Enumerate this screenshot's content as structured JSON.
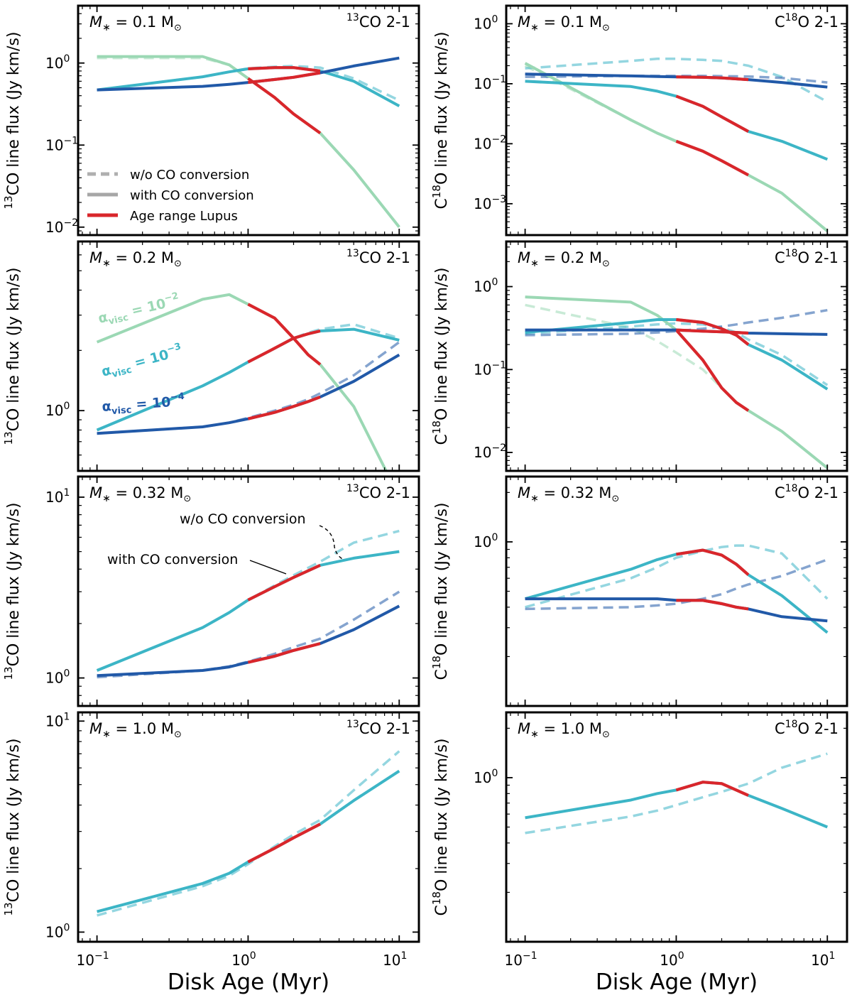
{
  "figure": {
    "xlabel": "Disk Age (Myr)",
    "ylabel_left_prefix": "13",
    "ylabel_left_suffix": "CO line flux (Jy km/s)",
    "ylabel_right_pre": "C",
    "ylabel_right_sup": "18",
    "ylabel_right_suffix": "O line flux (Jy km/s)",
    "colors": {
      "alpha_1e-2": "#9bd8b4",
      "alpha_1e-3": "#3cb5c6",
      "alpha_1e-4": "#2159a8",
      "lupus": "#d9262b",
      "legend_gray": "#a6a6a6"
    },
    "lupus_age_range": [
      1.0,
      3.0
    ]
  },
  "legend": {
    "dashed_label": "w/o CO conversion",
    "solid_label": "with CO conversion",
    "lupus_label": "Age range Lupus"
  },
  "annotations": {
    "alpha_prefix": "α",
    "alpha_sub": "visc",
    "alpha_1e-2_exp": "−2",
    "alpha_1e-3_exp": "−3",
    "alpha_1e-4_exp": "−4",
    "alpha_eq": " = 10",
    "wo_conversion": "w/o CO conversion",
    "with_conversion": "with CO conversion"
  },
  "chart_data": [
    {
      "id": "p1",
      "type": "line",
      "title": "13CO 2-1",
      "mass_label": "0.1",
      "ylim": [
        0.008,
        5.0
      ],
      "x": [
        0.1,
        0.5,
        0.75,
        1.0,
        1.5,
        2.0,
        3.0,
        5.0,
        10.0
      ],
      "series": [
        {
          "name": "alpha 1e-2 with CO conversion",
          "alpha": "1e-2",
          "style": "solid",
          "values": [
            1.2,
            1.2,
            0.95,
            0.65,
            0.38,
            0.24,
            0.14,
            0.05,
            0.01
          ]
        },
        {
          "name": "alpha 1e-2 w/o CO conversion",
          "alpha": "1e-2",
          "style": "dashed",
          "values": [
            1.15,
            1.15,
            0.95,
            0.65,
            0.38,
            0.24,
            0.14,
            0.05,
            0.01
          ]
        },
        {
          "name": "alpha 1e-3 with CO conversion",
          "alpha": "1e-3",
          "style": "solid",
          "values": [
            0.47,
            0.68,
            0.78,
            0.85,
            0.88,
            0.88,
            0.8,
            0.6,
            0.3
          ]
        },
        {
          "name": "alpha 1e-3 w/o CO conversion",
          "alpha": "1e-3",
          "style": "dashed",
          "values": [
            0.47,
            0.68,
            0.78,
            0.86,
            0.9,
            0.92,
            0.88,
            0.65,
            0.35
          ]
        },
        {
          "name": "alpha 1e-4 with CO conversion",
          "alpha": "1e-4",
          "style": "solid",
          "values": [
            0.47,
            0.52,
            0.55,
            0.58,
            0.63,
            0.67,
            0.76,
            0.92,
            1.15
          ]
        }
      ]
    },
    {
      "id": "p2",
      "type": "line",
      "title": "C18O 2-1",
      "mass_label": "0.1",
      "ylim": [
        0.0003,
        2.0
      ],
      "x": [
        0.1,
        0.5,
        0.75,
        1.0,
        1.5,
        2.0,
        3.0,
        5.0,
        10.0
      ],
      "series": [
        {
          "name": "alpha 1e-2 with CO conversion",
          "alpha": "1e-2",
          "style": "solid",
          "values": [
            0.22,
            0.025,
            0.015,
            0.011,
            0.0075,
            0.0052,
            0.003,
            0.0015,
            0.00035
          ]
        },
        {
          "name": "alpha 1e-2 w/o CO conversion",
          "alpha": "1e-2",
          "style": "dashed",
          "values": [
            0.2,
            0.025,
            0.015,
            0.011,
            0.0075,
            0.0052,
            0.003,
            0.0015,
            0.00035
          ]
        },
        {
          "name": "alpha 1e-3 with CO conversion",
          "alpha": "1e-3",
          "style": "solid",
          "values": [
            0.11,
            0.09,
            0.075,
            0.062,
            0.042,
            0.028,
            0.016,
            0.011,
            0.0055
          ]
        },
        {
          "name": "alpha 1e-3 w/o CO conversion",
          "alpha": "1e-3",
          "style": "dashed",
          "values": [
            0.18,
            0.24,
            0.26,
            0.26,
            0.25,
            0.24,
            0.2,
            0.13,
            0.05
          ]
        },
        {
          "name": "alpha 1e-4 with CO conversion",
          "alpha": "1e-4",
          "style": "solid",
          "values": [
            0.145,
            0.135,
            0.132,
            0.13,
            0.128,
            0.125,
            0.117,
            0.105,
            0.088
          ]
        },
        {
          "name": "alpha 1e-4 w/o CO conversion",
          "alpha": "1e-4",
          "style": "dashed",
          "values": [
            0.13,
            0.135,
            0.135,
            0.135,
            0.135,
            0.134,
            0.132,
            0.125,
            0.105
          ]
        }
      ]
    },
    {
      "id": "p3",
      "type": "line",
      "title": "13CO 2-1",
      "mass_label": "0.2",
      "ylim": [
        0.5,
        7.0
      ],
      "x": [
        0.1,
        0.5,
        0.75,
        1.0,
        1.5,
        2.0,
        2.5,
        3.0,
        5.0,
        10.0
      ],
      "series": [
        {
          "name": "alpha 1e-2 with CO conversion",
          "alpha": "1e-2",
          "style": "solid",
          "values": [
            2.2,
            3.6,
            3.8,
            3.4,
            2.9,
            2.3,
            1.9,
            1.7,
            1.05,
            0.37
          ]
        },
        {
          "name": "alpha 1e-3 with CO conversion",
          "alpha": "1e-3",
          "style": "solid",
          "values": [
            0.8,
            1.33,
            1.55,
            1.75,
            2.05,
            2.3,
            2.42,
            2.5,
            2.55,
            2.25
          ]
        },
        {
          "name": "alpha 1e-3 w/o CO conversion",
          "alpha": "1e-3",
          "style": "dashed",
          "values": [
            0.8,
            1.33,
            1.55,
            1.75,
            2.05,
            2.3,
            2.45,
            2.55,
            2.7,
            2.3
          ]
        },
        {
          "name": "alpha 1e-4 with CO conversion",
          "alpha": "1e-4",
          "style": "solid",
          "values": [
            0.77,
            0.83,
            0.87,
            0.91,
            0.98,
            1.05,
            1.11,
            1.17,
            1.4,
            1.9
          ]
        },
        {
          "name": "alpha 1e-4 w/o CO conversion",
          "alpha": "1e-4",
          "style": "dashed",
          "values": [
            0.77,
            0.83,
            0.87,
            0.92,
            1.0,
            1.07,
            1.14,
            1.22,
            1.5,
            2.2
          ]
        }
      ]
    },
    {
      "id": "p4",
      "type": "line",
      "title": "C18O 2-1",
      "mass_label": "0.2",
      "ylim": [
        0.006,
        3.5
      ],
      "x": [
        0.1,
        0.5,
        0.75,
        1.0,
        1.5,
        2.0,
        2.5,
        3.0,
        5.0,
        10.0
      ],
      "series": [
        {
          "name": "alpha 1e-2 with CO conversion",
          "alpha": "1e-2",
          "style": "solid",
          "values": [
            0.75,
            0.65,
            0.45,
            0.3,
            0.13,
            0.06,
            0.04,
            0.032,
            0.018,
            0.0065
          ]
        },
        {
          "name": "alpha 1e-2 w/o CO conversion",
          "alpha": "1e-2",
          "style": "dashed",
          "values": [
            0.6,
            0.32,
            0.22,
            0.16,
            0.1,
            0.06,
            0.04,
            0.032,
            0.018,
            0.0065
          ]
        },
        {
          "name": "alpha 1e-3 with CO conversion",
          "alpha": "1e-3",
          "style": "solid",
          "values": [
            0.28,
            0.37,
            0.4,
            0.4,
            0.37,
            0.31,
            0.26,
            0.2,
            0.13,
            0.058
          ]
        },
        {
          "name": "alpha 1e-3 w/o CO conversion",
          "alpha": "1e-3",
          "style": "dashed",
          "values": [
            0.27,
            0.33,
            0.35,
            0.36,
            0.35,
            0.32,
            0.28,
            0.23,
            0.15,
            0.065
          ]
        },
        {
          "name": "alpha 1e-4 with CO conversion",
          "alpha": "1e-4",
          "style": "solid",
          "values": [
            0.3,
            0.3,
            0.3,
            0.3,
            0.29,
            0.285,
            0.28,
            0.275,
            0.27,
            0.265
          ]
        },
        {
          "name": "alpha 1e-4 w/o CO conversion",
          "alpha": "1e-4",
          "style": "dashed",
          "values": [
            0.26,
            0.27,
            0.28,
            0.29,
            0.31,
            0.33,
            0.35,
            0.37,
            0.42,
            0.52
          ]
        }
      ]
    },
    {
      "id": "p5",
      "type": "line",
      "title": "13CO 2-1",
      "mass_label": "0.32",
      "ylim": [
        0.7,
        13.0
      ],
      "x": [
        0.1,
        0.5,
        0.75,
        1.0,
        1.5,
        2.0,
        3.0,
        5.0,
        10.0
      ],
      "series": [
        {
          "name": "alpha 1e-3 with CO conversion",
          "alpha": "1e-3",
          "style": "solid",
          "values": [
            1.1,
            1.9,
            2.3,
            2.7,
            3.2,
            3.6,
            4.2,
            4.6,
            5.0
          ]
        },
        {
          "name": "alpha 1e-3 w/o CO conversion",
          "alpha": "1e-3",
          "style": "dashed",
          "values": [
            1.1,
            1.9,
            2.3,
            2.7,
            3.25,
            3.7,
            4.4,
            5.6,
            6.5
          ]
        },
        {
          "name": "alpha 1e-4 with CO conversion",
          "alpha": "1e-4",
          "style": "solid",
          "values": [
            1.03,
            1.1,
            1.15,
            1.22,
            1.32,
            1.42,
            1.55,
            1.85,
            2.5
          ]
        },
        {
          "name": "alpha 1e-4 w/o CO conversion",
          "alpha": "1e-4",
          "style": "dashed",
          "values": [
            1.01,
            1.1,
            1.16,
            1.23,
            1.36,
            1.48,
            1.65,
            2.1,
            3.0
          ]
        }
      ]
    },
    {
      "id": "p6",
      "type": "line",
      "title": "C18O 2-1",
      "mass_label": "0.32",
      "ylim": [
        0.1,
        2.5
      ],
      "x": [
        0.1,
        0.5,
        0.75,
        1.0,
        1.5,
        2.0,
        2.5,
        3.0,
        5.0,
        10.0
      ],
      "series": [
        {
          "name": "alpha 1e-3 with CO conversion",
          "alpha": "1e-3",
          "style": "solid",
          "values": [
            0.45,
            0.68,
            0.78,
            0.84,
            0.89,
            0.83,
            0.73,
            0.63,
            0.47,
            0.28
          ]
        },
        {
          "name": "alpha 1e-3 w/o CO conversion",
          "alpha": "1e-3",
          "style": "dashed",
          "values": [
            0.4,
            0.6,
            0.7,
            0.8,
            0.88,
            0.93,
            0.95,
            0.95,
            0.85,
            0.45
          ]
        },
        {
          "name": "alpha 1e-4 with CO conversion",
          "alpha": "1e-4",
          "style": "solid",
          "values": [
            0.45,
            0.45,
            0.45,
            0.44,
            0.44,
            0.42,
            0.4,
            0.39,
            0.35,
            0.33
          ]
        },
        {
          "name": "alpha 1e-4 w/o CO conversion",
          "alpha": "1e-4",
          "style": "dashed",
          "values": [
            0.39,
            0.4,
            0.41,
            0.42,
            0.45,
            0.48,
            0.52,
            0.55,
            0.62,
            0.78
          ]
        }
      ]
    },
    {
      "id": "p7",
      "type": "line",
      "title": "13CO 2-1",
      "mass_label": "1.0",
      "ylim": [
        0.9,
        11.0
      ],
      "x": [
        0.1,
        0.5,
        0.75,
        1.0,
        1.5,
        2.0,
        3.0,
        5.0,
        10.0
      ],
      "series": [
        {
          "name": "alpha 1e-3 with CO conversion",
          "alpha": "1e-3",
          "style": "solid",
          "values": [
            1.25,
            1.7,
            1.9,
            2.15,
            2.5,
            2.8,
            3.25,
            4.2,
            5.8
          ]
        },
        {
          "name": "alpha 1e-3 w/o CO conversion",
          "alpha": "1e-3",
          "style": "dashed",
          "values": [
            1.2,
            1.65,
            1.85,
            2.1,
            2.55,
            2.9,
            3.4,
            4.7,
            7.2
          ]
        }
      ]
    },
    {
      "id": "p8",
      "type": "line",
      "title": "C18O 2-1",
      "mass_label": "1.0",
      "ylim": [
        0.1,
        2.5
      ],
      "x": [
        0.1,
        0.5,
        0.75,
        1.0,
        1.5,
        2.0,
        3.0,
        5.0,
        10.0
      ],
      "series": [
        {
          "name": "alpha 1e-3 with CO conversion",
          "alpha": "1e-3",
          "style": "solid",
          "values": [
            0.57,
            0.73,
            0.8,
            0.84,
            0.94,
            0.92,
            0.78,
            0.65,
            0.5
          ]
        },
        {
          "name": "alpha 1e-3 w/o CO conversion",
          "alpha": "1e-3",
          "style": "dashed",
          "values": [
            0.46,
            0.58,
            0.63,
            0.68,
            0.76,
            0.82,
            0.92,
            1.15,
            1.4
          ]
        }
      ]
    }
  ],
  "xaxis": {
    "xlim": [
      0.075,
      13.5
    ],
    "ticks": [
      0.1,
      1,
      10
    ],
    "tick_labels": [
      {
        "base": "10",
        "exp": "−1"
      },
      {
        "base": "10",
        "exp": "0"
      },
      {
        "base": "10",
        "exp": "1"
      }
    ]
  }
}
